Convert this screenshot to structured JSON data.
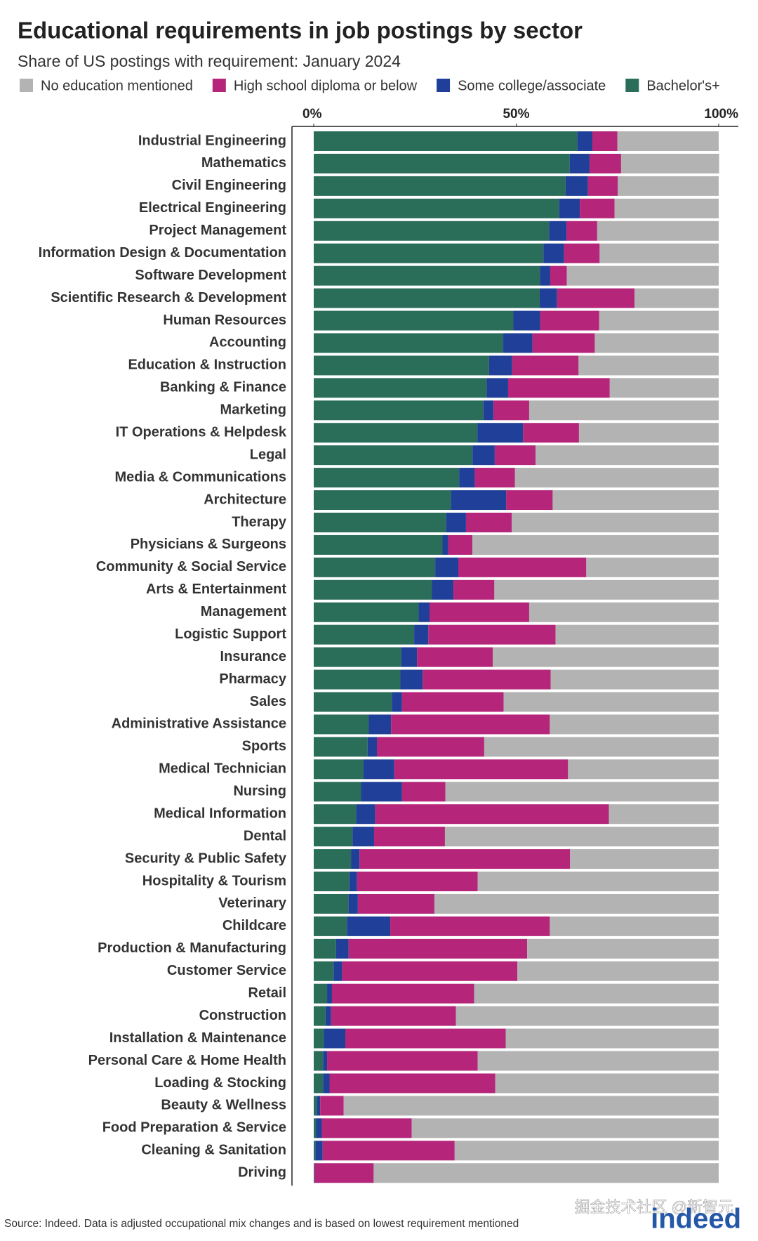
{
  "chart_data": {
    "type": "stacked_barh",
    "title": "Educational requirements in job postings by sector",
    "subtitle": "Share of US postings with requirement: January 2024",
    "source": "Source: Indeed. Data is adjusted occupational mix changes and is based on lowest requirement mentioned",
    "logo": "indeed",
    "watermark": "掘金技术社区 @新智元",
    "xlim": [
      0,
      100
    ],
    "xticks": [
      {
        "value": 0,
        "label": "0%"
      },
      {
        "value": 50,
        "label": "50%"
      },
      {
        "value": 100,
        "label": "100%"
      }
    ],
    "categories": [
      "Industrial Engineering",
      "Mathematics",
      "Civil Engineering",
      "Electrical Engineering",
      "Project Management",
      "Information Design & Documentation",
      "Software Development",
      "Scientific Research & Development",
      "Human Resources",
      "Accounting",
      "Education & Instruction",
      "Banking & Finance",
      "Marketing",
      "IT Operations & Helpdesk",
      "Legal",
      "Media & Communications",
      "Architecture",
      "Therapy",
      "Physicians & Surgeons",
      "Community & Social Service",
      "Arts & Entertainment",
      "Management",
      "Logistic Support",
      "Insurance",
      "Pharmacy",
      "Sales",
      "Administrative Assistance",
      "Sports",
      "Medical Technician",
      "Nursing",
      "Medical Information",
      "Dental",
      "Security & Public Safety",
      "Hospitality & Tourism",
      "Veterinary",
      "Childcare",
      "Production & Manufacturing",
      "Customer Service",
      "Retail",
      "Construction",
      "Installation & Maintenance",
      "Personal Care & Home Health",
      "Loading & Stocking",
      "Beauty & Wellness",
      "Food Preparation & Service",
      "Cleaning & Sanitation",
      "Driving"
    ],
    "series": [
      {
        "name": "No education mentioned",
        "color": "#b3b3b3",
        "values": [
          25.0,
          24.2,
          24.9,
          25.7,
          30.0,
          29.4,
          37.5,
          20.8,
          29.5,
          30.6,
          34.6,
          26.9,
          46.8,
          34.5,
          45.2,
          50.3,
          41.0,
          51.1,
          60.8,
          32.7,
          55.4,
          46.8,
          40.3,
          55.8,
          41.5,
          53.1,
          41.7,
          57.9,
          37.2,
          67.5,
          27.1,
          67.6,
          36.7,
          59.5,
          70.2,
          41.7,
          47.3,
          49.7,
          60.4,
          64.9,
          52.6,
          59.5,
          55.2,
          92.6,
          75.8,
          65.2,
          85.2
        ]
      },
      {
        "name": "High school diploma or below",
        "color": "#b5267a",
        "values": [
          6.2,
          7.8,
          7.4,
          8.6,
          7.6,
          8.8,
          4.1,
          19.1,
          14.6,
          15.4,
          16.4,
          25.1,
          8.8,
          13.8,
          10.1,
          9.9,
          11.5,
          11.3,
          6.0,
          31.6,
          10.1,
          24.6,
          31.4,
          18.7,
          31.6,
          25.1,
          39.2,
          26.5,
          42.9,
          10.7,
          57.7,
          17.5,
          52.0,
          29.8,
          18.9,
          39.4,
          44.1,
          43.3,
          35.1,
          30.8,
          39.6,
          37.2,
          40.9,
          5.8,
          22.2,
          32.6,
          14.6
        ]
      },
      {
        "name": "Some college/associate",
        "color": "#1f3f99",
        "values": [
          3.7,
          4.9,
          5.5,
          5.1,
          4.3,
          5.1,
          2.5,
          4.3,
          6.6,
          7.2,
          5.7,
          5.3,
          2.5,
          11.3,
          5.5,
          3.9,
          13.6,
          4.9,
          1.4,
          5.7,
          5.3,
          2.7,
          3.5,
          3.9,
          5.5,
          2.5,
          5.5,
          2.3,
          7.6,
          10.1,
          4.7,
          5.3,
          2.1,
          1.9,
          2.3,
          10.7,
          3.1,
          2.1,
          1.2,
          1.4,
          5.3,
          1.0,
          1.6,
          0.8,
          1.4,
          1.8,
          0.1
        ]
      },
      {
        "name": "Bachelor's+",
        "color": "#2a6e5a",
        "values": [
          65.1,
          63.2,
          62.2,
          60.6,
          58.1,
          56.7,
          55.9,
          55.8,
          49.3,
          46.8,
          43.3,
          42.7,
          41.9,
          40.4,
          39.2,
          35.9,
          33.9,
          32.7,
          31.8,
          30.0,
          29.2,
          25.9,
          24.8,
          21.6,
          21.4,
          19.3,
          13.6,
          13.3,
          12.3,
          11.7,
          10.5,
          9.6,
          9.2,
          8.8,
          8.6,
          8.2,
          5.5,
          4.9,
          3.3,
          2.9,
          2.5,
          2.3,
          2.3,
          0.8,
          0.6,
          0.4,
          0.1
        ]
      }
    ]
  }
}
